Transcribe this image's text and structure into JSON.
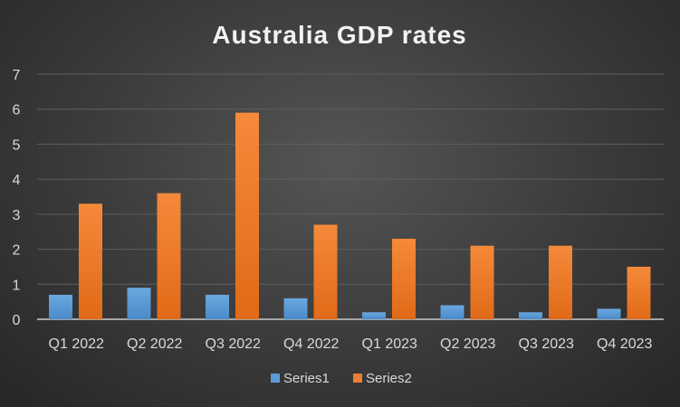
{
  "chart_data": {
    "type": "bar",
    "title": "Australia GDP rates",
    "xlabel": "",
    "ylabel": "",
    "categories": [
      "Q1 2022",
      "Q2 2022",
      "Q3 2022",
      "Q4 2022",
      "Q1 2023",
      "Q2 2023",
      "Q3 2023",
      "Q4 2023"
    ],
    "series": [
      {
        "name": "Series1",
        "values": [
          0.7,
          0.9,
          0.7,
          0.6,
          0.2,
          0.4,
          0.2,
          0.3
        ],
        "color": "#5b9bd5"
      },
      {
        "name": "Series2",
        "values": [
          3.3,
          3.6,
          5.9,
          2.7,
          2.3,
          2.1,
          2.1,
          1.5
        ],
        "color": "#ed7d31"
      }
    ],
    "ylim": [
      0,
      7
    ],
    "yticks": [
      "0",
      "1",
      "2",
      "3",
      "4",
      "5",
      "6",
      "7"
    ],
    "grid": true,
    "legend": "bottom"
  }
}
